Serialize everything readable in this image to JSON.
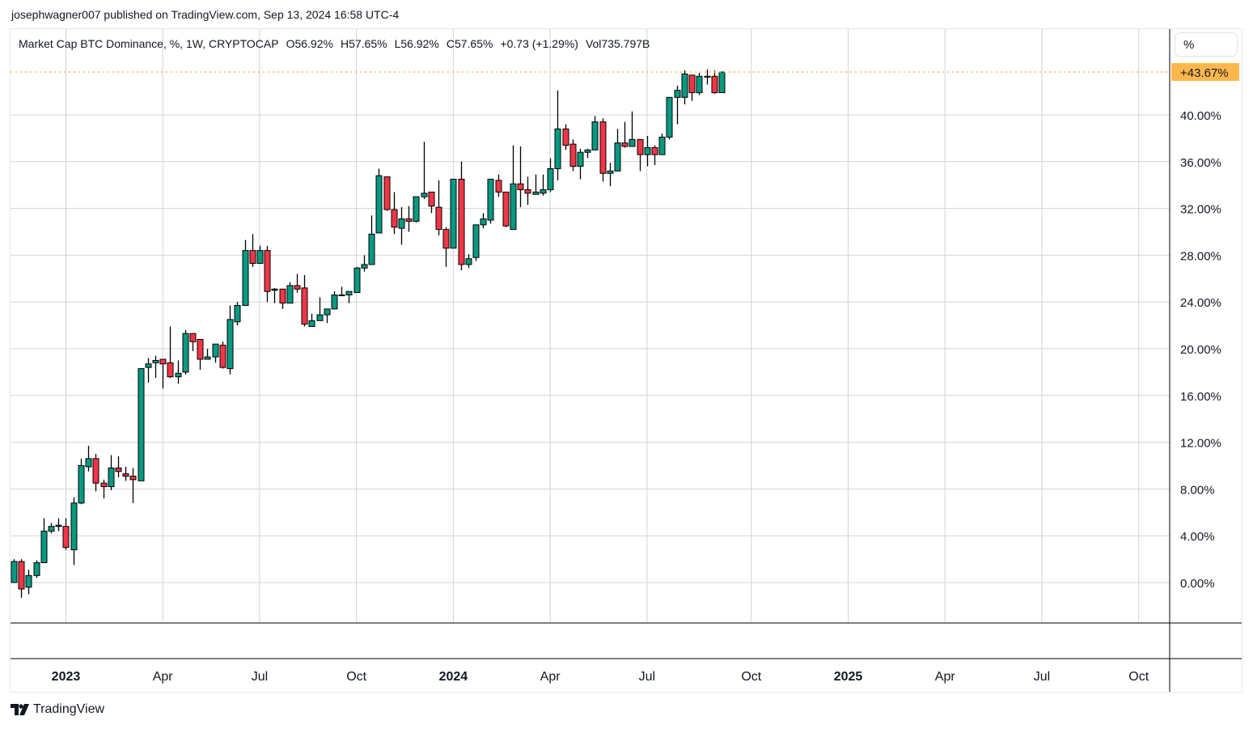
{
  "published": "josephwagner007 published on TradingView.com, Sep 13, 2024 16:58 UTC-4",
  "legend": {
    "symbol": "Market Cap BTC Dominance, %, 1W, CRYPTOCAP",
    "open": "O56.92%",
    "high": "H57.65%",
    "low": "L56.92%",
    "close": "C57.65%",
    "change": "+0.73 (+1.29%)",
    "volume": "Vol735.797B"
  },
  "scale_button": "%",
  "logo": "TradingView",
  "colors": {
    "up": "#089981",
    "down": "#f23645",
    "last_price": "#ffb74d",
    "grid": "#d1d4dc"
  },
  "chart_data": {
    "type": "candlestick",
    "interval": "1W",
    "scale": "percent",
    "ylim": [
      -3.5,
      47.3
    ],
    "grid": true,
    "last_price_label": "+43.67%",
    "last_price": 43.67,
    "y_ticks": [
      {
        "value": 0,
        "label": "0.00%"
      },
      {
        "value": 4,
        "label": "4.00%"
      },
      {
        "value": 8,
        "label": "8.00%"
      },
      {
        "value": 12,
        "label": "12.00%"
      },
      {
        "value": 16,
        "label": "16.00%"
      },
      {
        "value": 20,
        "label": "20.00%"
      },
      {
        "value": 24,
        "label": "24.00%"
      },
      {
        "value": 28,
        "label": "28.00%"
      },
      {
        "value": 32,
        "label": "32.00%"
      },
      {
        "value": 36,
        "label": "36.00%"
      },
      {
        "value": 40,
        "label": "40.00%"
      }
    ],
    "x_ticks": [
      {
        "date": "2023-01-02",
        "label": "2023",
        "bold": true
      },
      {
        "date": "2023-04-03",
        "label": "Apr"
      },
      {
        "date": "2023-07-03",
        "label": "Jul"
      },
      {
        "date": "2023-10-02",
        "label": "Oct"
      },
      {
        "date": "2024-01-01",
        "label": "2024",
        "bold": true
      },
      {
        "date": "2024-04-01",
        "label": "Apr"
      },
      {
        "date": "2024-07-01",
        "label": "Jul"
      },
      {
        "date": "2024-10-07",
        "label": "Oct"
      },
      {
        "date": "2025-01-06",
        "label": "2025",
        "bold": true
      },
      {
        "date": "2025-04-07",
        "label": "Apr"
      },
      {
        "date": "2025-07-07",
        "label": "Jul"
      },
      {
        "date": "2025-10-06",
        "label": "Oct"
      }
    ],
    "x_range": [
      "2022-11-14",
      "2025-12-01"
    ],
    "candles_columns": [
      "date",
      "open",
      "high",
      "low",
      "close"
    ],
    "candles": [
      [
        "2022-11-14",
        0,
        2.0,
        0,
        1.8
      ],
      [
        "2022-11-21",
        1.8,
        2.0,
        -1.3,
        -0.55
      ],
      [
        "2022-11-28",
        -0.4,
        1.1,
        -1.0,
        0.6
      ],
      [
        "2022-12-05",
        0.6,
        1.9,
        0.4,
        1.7
      ],
      [
        "2022-12-12",
        1.7,
        5.5,
        1.7,
        4.4
      ],
      [
        "2022-12-19",
        4.4,
        5.1,
        4.2,
        4.8
      ],
      [
        "2022-12-26",
        4.8,
        5.5,
        4.4,
        4.9
      ],
      [
        "2023-01-02",
        4.8,
        5.5,
        2.8,
        3.0
      ],
      [
        "2023-01-09",
        2.8,
        7.3,
        1.5,
        6.8
      ],
      [
        "2023-01-16",
        6.8,
        10.6,
        6.7,
        10.0
      ],
      [
        "2023-01-23",
        9.9,
        11.7,
        9.5,
        10.6
      ],
      [
        "2023-01-30",
        10.6,
        11.0,
        7.8,
        8.5
      ],
      [
        "2023-02-06",
        8.5,
        8.8,
        7.2,
        8.2
      ],
      [
        "2023-02-13",
        8.2,
        10.9,
        7.9,
        9.8
      ],
      [
        "2023-02-20",
        9.8,
        10.8,
        9.0,
        9.5
      ],
      [
        "2023-02-27",
        9.3,
        9.9,
        8.7,
        9.1
      ],
      [
        "2023-03-06",
        9.1,
        9.8,
        6.8,
        8.8
      ],
      [
        "2023-03-13",
        8.7,
        18.3,
        8.7,
        18.3
      ],
      [
        "2023-03-20",
        18.4,
        19.2,
        17.1,
        18.7
      ],
      [
        "2023-03-27",
        18.8,
        19.4,
        17.5,
        19.0
      ],
      [
        "2023-04-03",
        19.1,
        19.1,
        16.6,
        18.7
      ],
      [
        "2023-04-10",
        18.8,
        21.9,
        17.5,
        17.6
      ],
      [
        "2023-04-17",
        17.6,
        19.0,
        17.0,
        17.9
      ],
      [
        "2023-04-24",
        18.0,
        21.6,
        17.8,
        21.3
      ],
      [
        "2023-05-01",
        21.3,
        21.3,
        19.8,
        20.6
      ],
      [
        "2023-05-08",
        20.8,
        20.8,
        18.2,
        19.1
      ],
      [
        "2023-05-15",
        19.1,
        20.0,
        19.1,
        19.3
      ],
      [
        "2023-05-22",
        19.3,
        20.4,
        18.8,
        20.4
      ],
      [
        "2023-05-29",
        20.3,
        20.6,
        18.3,
        18.4
      ],
      [
        "2023-06-05",
        18.3,
        23.7,
        17.8,
        22.5
      ],
      [
        "2023-06-12",
        22.3,
        24.0,
        22.0,
        23.7
      ],
      [
        "2023-06-19",
        23.7,
        29.3,
        23.7,
        28.4
      ],
      [
        "2023-06-26",
        28.4,
        29.8,
        27.0,
        27.3
      ],
      [
        "2023-07-03",
        27.3,
        28.8,
        27.3,
        28.4
      ],
      [
        "2023-07-10",
        28.4,
        28.8,
        24.0,
        24.9
      ],
      [
        "2023-07-17",
        25.0,
        25.2,
        23.9,
        25.1
      ],
      [
        "2023-07-24",
        25.1,
        25.1,
        23.4,
        23.9
      ],
      [
        "2023-07-31",
        23.9,
        25.7,
        23.9,
        25.4
      ],
      [
        "2023-08-07",
        25.4,
        26.4,
        24.8,
        25.1
      ],
      [
        "2023-08-14",
        25.2,
        26.3,
        21.9,
        22.1
      ],
      [
        "2023-08-21",
        21.9,
        23.0,
        21.9,
        22.4
      ],
      [
        "2023-08-28",
        22.4,
        24.4,
        22.4,
        22.9
      ],
      [
        "2023-09-04",
        22.9,
        23.4,
        22.2,
        23.4
      ],
      [
        "2023-09-11",
        23.4,
        24.9,
        23.4,
        24.6
      ],
      [
        "2023-09-18",
        24.6,
        25.3,
        24.6,
        24.6
      ],
      [
        "2023-09-25",
        24.6,
        24.9,
        23.9,
        24.9
      ],
      [
        "2023-10-02",
        24.8,
        27.0,
        24.8,
        26.9
      ],
      [
        "2023-10-09",
        26.9,
        28.0,
        26.6,
        27.2
      ],
      [
        "2023-10-16",
        27.2,
        31.4,
        27.2,
        29.8
      ],
      [
        "2023-10-23",
        29.9,
        35.4,
        29.9,
        34.8
      ],
      [
        "2023-10-30",
        34.7,
        34.7,
        31.8,
        31.9
      ],
      [
        "2023-11-06",
        31.9,
        33.4,
        29.8,
        30.4
      ],
      [
        "2023-11-13",
        30.3,
        32.1,
        28.9,
        31.1
      ],
      [
        "2023-11-20",
        31.1,
        32.2,
        30.0,
        30.9
      ],
      [
        "2023-11-27",
        30.9,
        33.0,
        30.8,
        33.0
      ],
      [
        "2023-12-04",
        33.0,
        37.7,
        32.8,
        33.3
      ],
      [
        "2023-12-11",
        33.4,
        33.4,
        31.6,
        32.2
      ],
      [
        "2023-12-18",
        32.1,
        34.4,
        29.7,
        30.2
      ],
      [
        "2023-12-25",
        30.2,
        30.4,
        27.0,
        28.6
      ],
      [
        "2024-01-01",
        28.6,
        34.5,
        28.6,
        34.5
      ],
      [
        "2024-01-08",
        34.5,
        36.0,
        26.7,
        27.2
      ],
      [
        "2024-01-15",
        27.2,
        28.1,
        26.9,
        27.7
      ],
      [
        "2024-01-22",
        27.8,
        30.6,
        27.5,
        30.6
      ],
      [
        "2024-01-29",
        30.6,
        31.6,
        30.3,
        31.1
      ],
      [
        "2024-02-05",
        31.0,
        34.5,
        30.7,
        34.5
      ],
      [
        "2024-02-12",
        34.4,
        34.9,
        33.0,
        33.4
      ],
      [
        "2024-02-19",
        33.4,
        33.4,
        30.4,
        30.5
      ],
      [
        "2024-02-26",
        30.2,
        37.4,
        30.2,
        34.1
      ],
      [
        "2024-03-04",
        34.1,
        37.3,
        32.1,
        33.6
      ],
      [
        "2024-03-11",
        33.6,
        34.7,
        32.3,
        33.3
      ],
      [
        "2024-03-18",
        33.2,
        34.9,
        33.2,
        33.4
      ],
      [
        "2024-03-25",
        33.3,
        34.9,
        33.1,
        33.6
      ],
      [
        "2024-04-01",
        33.6,
        36.3,
        33.4,
        35.4
      ],
      [
        "2024-04-08",
        35.4,
        42.1,
        34.4,
        38.8
      ],
      [
        "2024-04-15",
        38.8,
        39.2,
        37.0,
        37.4
      ],
      [
        "2024-04-22",
        37.5,
        37.9,
        35.2,
        35.6
      ],
      [
        "2024-04-29",
        35.6,
        37.1,
        34.5,
        36.8
      ],
      [
        "2024-05-06",
        36.8,
        37.1,
        36.3,
        37.0
      ],
      [
        "2024-05-13",
        37.0,
        39.9,
        37.0,
        39.4
      ],
      [
        "2024-05-20",
        39.4,
        39.7,
        34.3,
        35.0
      ],
      [
        "2024-05-27",
        35.0,
        35.9,
        33.9,
        35.2
      ],
      [
        "2024-06-03",
        35.2,
        38.8,
        35.2,
        37.6
      ],
      [
        "2024-06-10",
        37.6,
        39.4,
        37.2,
        37.3
      ],
      [
        "2024-06-17",
        37.3,
        40.3,
        37.3,
        37.9
      ],
      [
        "2024-06-24",
        37.9,
        37.9,
        35.2,
        36.6
      ],
      [
        "2024-07-01",
        36.6,
        38.2,
        35.6,
        37.2
      ],
      [
        "2024-07-08",
        37.2,
        37.4,
        35.7,
        36.6
      ],
      [
        "2024-07-15",
        36.6,
        38.4,
        36.6,
        38.1
      ],
      [
        "2024-07-22",
        38.1,
        41.5,
        37.9,
        41.5
      ],
      [
        "2024-07-29",
        41.5,
        42.5,
        39.2,
        42.1
      ],
      [
        "2024-08-05",
        41.5,
        43.8,
        40.9,
        43.5
      ],
      [
        "2024-08-12",
        43.4,
        43.4,
        41.2,
        41.9
      ],
      [
        "2024-08-19",
        41.9,
        43.6,
        41.7,
        43.3
      ],
      [
        "2024-08-26",
        43.3,
        43.9,
        42.6,
        43.3
      ],
      [
        "2024-09-02",
        43.3,
        43.8,
        41.8,
        41.9
      ],
      [
        "2024-09-09",
        41.9,
        43.67,
        41.9,
        43.67
      ]
    ]
  }
}
